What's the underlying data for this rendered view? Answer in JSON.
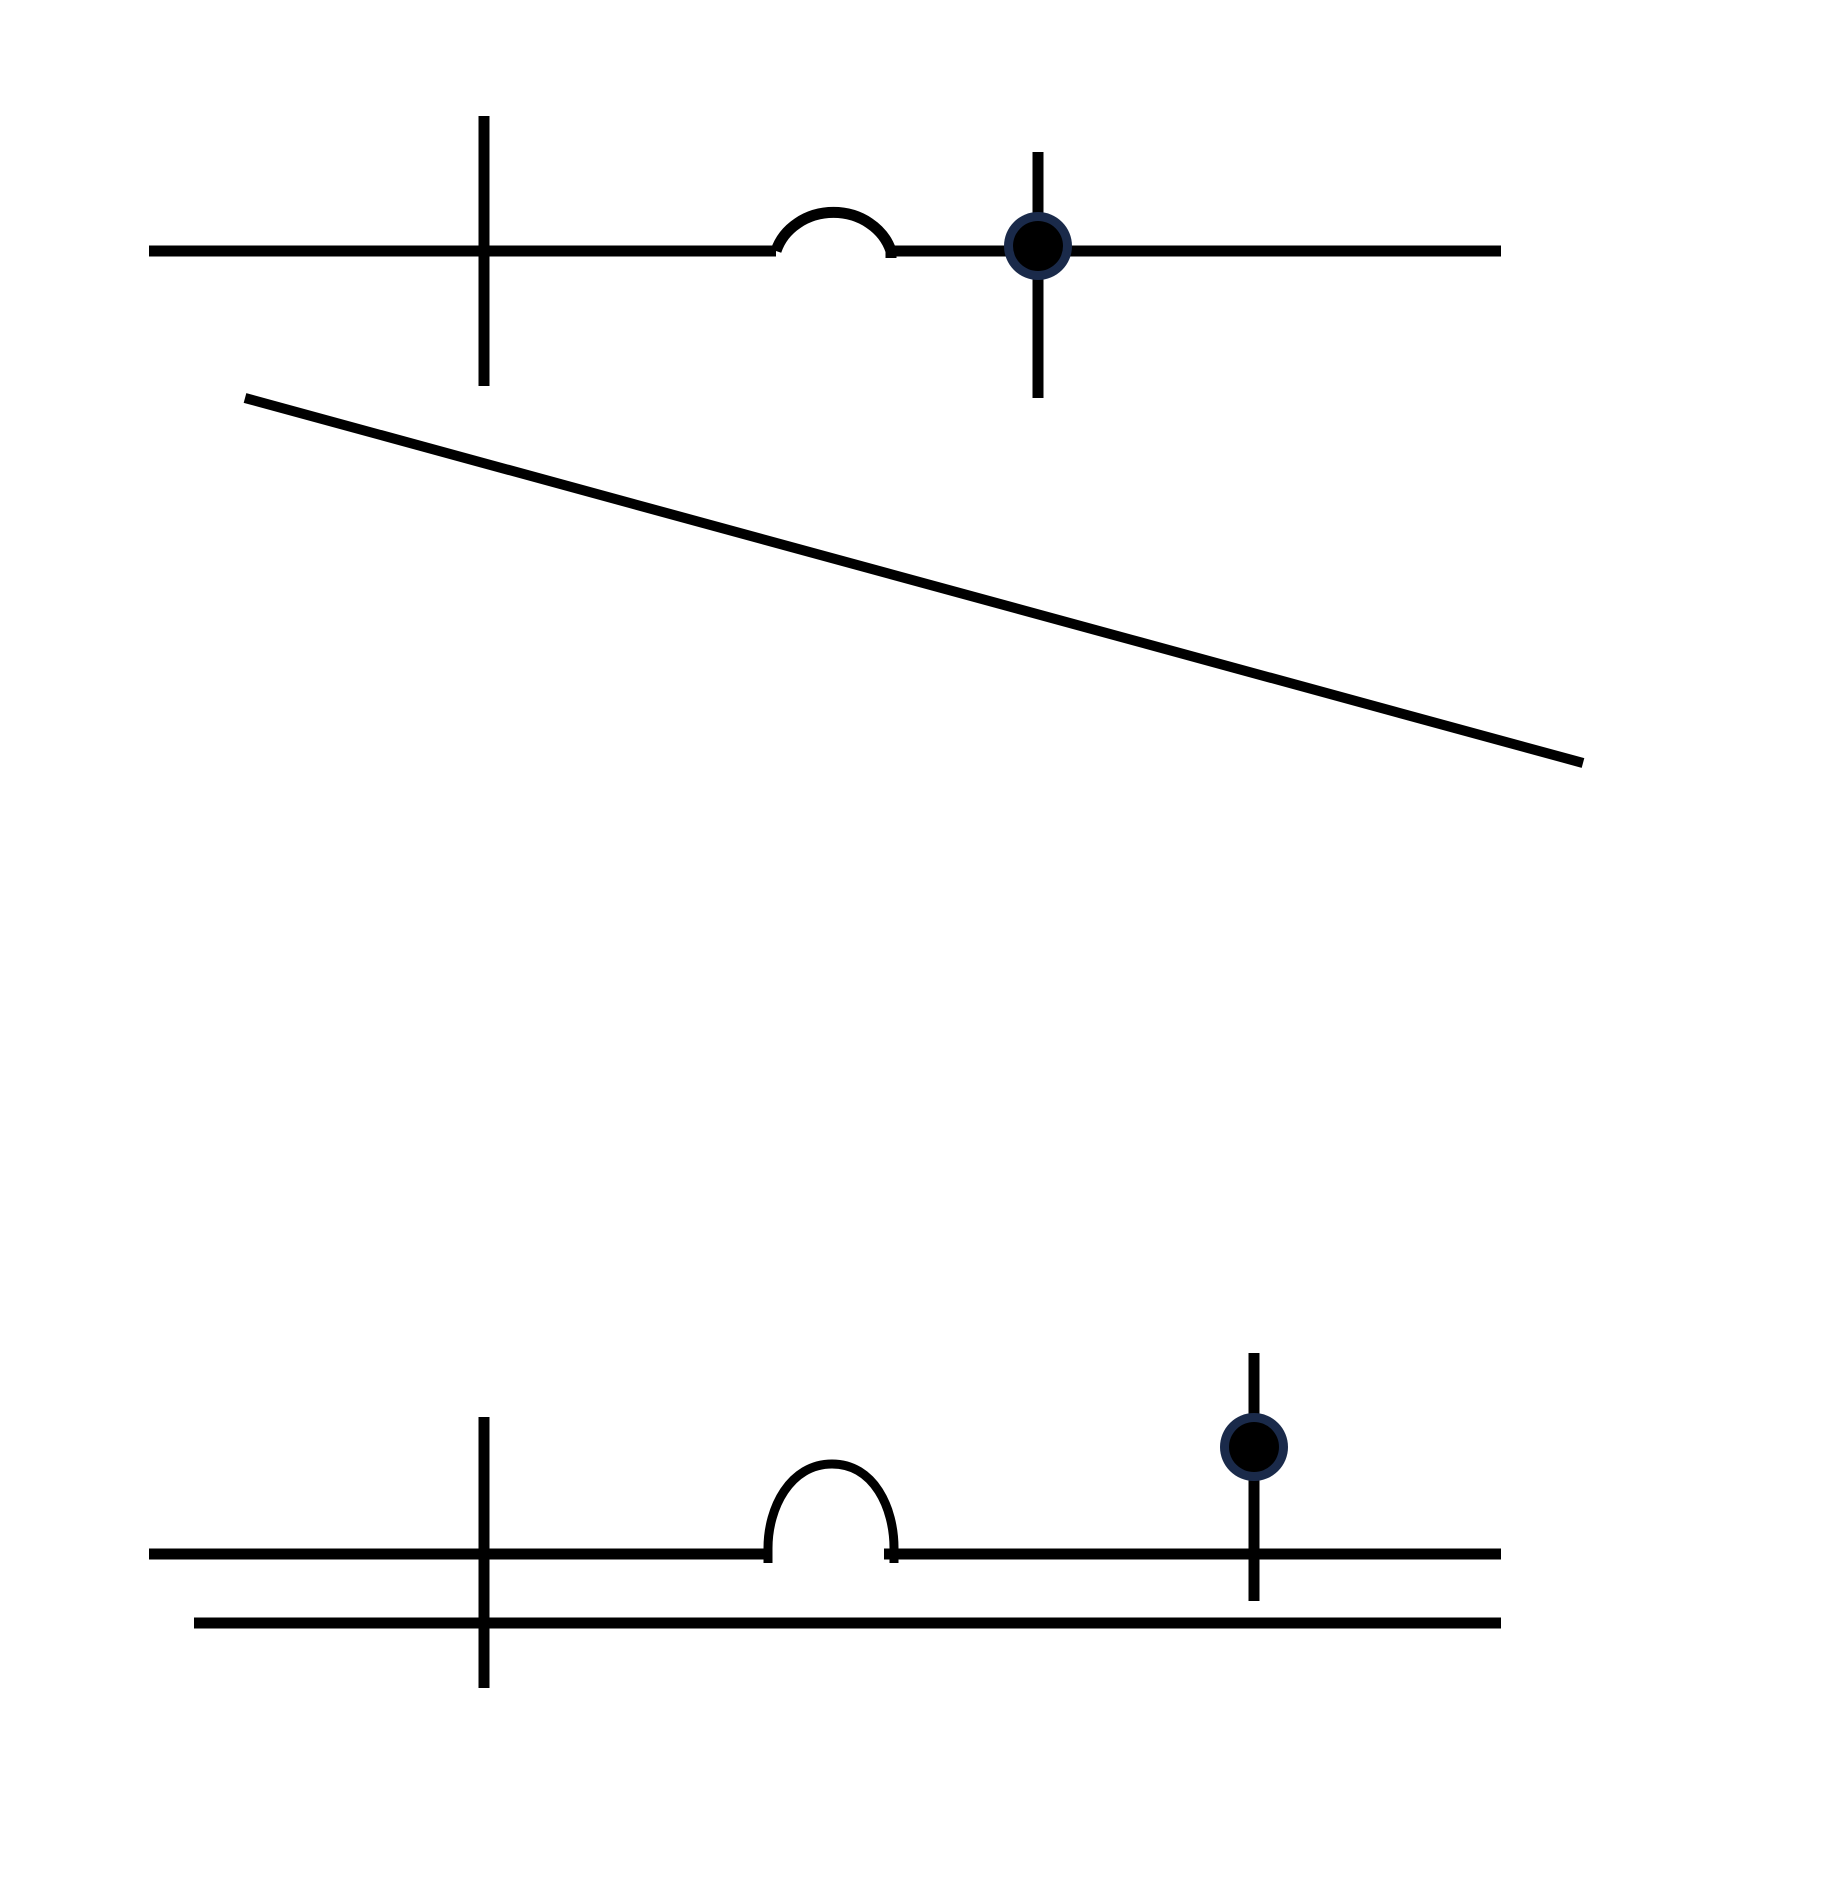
{
  "diagram": {
    "stroke_color": "#000000",
    "junction_fill": "#000000",
    "junction_ring": "#1a2a4a",
    "background": "#ffffff",
    "parts": [
      "top-wire-assembly",
      "diagonal-line",
      "bottom-wire-assembly"
    ]
  }
}
